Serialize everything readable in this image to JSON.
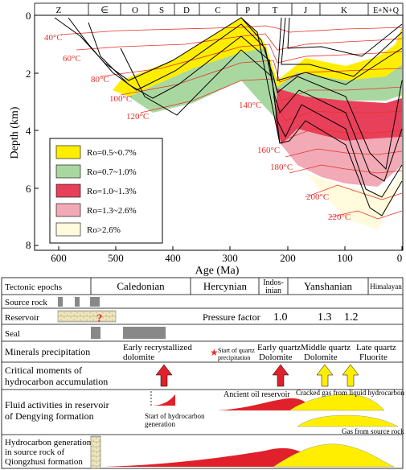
{
  "burial": {
    "periods": [
      "Z",
      "∈",
      "O",
      "S",
      "D",
      "C",
      "P",
      "T",
      "J",
      "K",
      "E+N+Q"
    ],
    "y_axis_label": "Depth (km)",
    "x_axis_label": "Age (Ma)",
    "depth_ticks": [
      "0",
      "2",
      "4",
      "6",
      "8"
    ],
    "age_ticks": [
      "600",
      "500",
      "400",
      "300",
      "200",
      "100",
      "0"
    ],
    "isotherms": [
      "40°C",
      "60°C",
      "80°C",
      "100°C",
      "120°C",
      "140°C",
      "160°C",
      "180°C",
      "200°C",
      "220°C"
    ],
    "legend": [
      {
        "label": "Ro=0.5~0.7%",
        "color": "#ffee00"
      },
      {
        "label": "Ro=0.7~1.0%",
        "color": "#a8d8a0"
      },
      {
        "label": "Ro=1.0~1.3%",
        "color": "#e8405a"
      },
      {
        "label": "Ro=1.3~2.6%",
        "color": "#f2aab6"
      },
      {
        "label": "Ro>2.6%",
        "color": "#fffbdc"
      }
    ]
  },
  "timeline": {
    "tectonic_label": "Tectonic epochs",
    "epochs": [
      "Caledonian",
      "Hercynian",
      "Indos-",
      "inian",
      "Yanshanian",
      "Himalayan"
    ],
    "source_rock": "Source rock",
    "reservoir": "Reservoir",
    "question_mark": "?",
    "pressure_factor": "Pressure factor",
    "pressure_values": [
      "1.0",
      "1.3",
      "1.2"
    ],
    "seal": "Seal",
    "minerals_label": "Minerals precipitation",
    "minerals": {
      "early_dolomite_1": "Early recrystallized",
      "early_dolomite_2": "dolomite",
      "quartz_start_1": "Start of quartz",
      "quartz_start_2": "precipitation",
      "eq_1": "Early quartz",
      "eq_2": "Dolomite",
      "mq_1": "Middle quartz",
      "mq_2": "Dolomite",
      "lq_1": "Late quartz",
      "lq_2": "Fluorite"
    },
    "critical_1": "Critical moments of",
    "critical_2": "hydrocarbon accumulation",
    "fluid_1": "Fluid activities in reservoir",
    "fluid_2": "of Dengying formation",
    "start_gen_1": "Start of hydrocarbon",
    "start_gen_2": "generation",
    "ancient_oil": "Ancient oil reservoir",
    "cracked_gas": "Cracked gas from liquid hydrocarbon",
    "gas_source": "Gas from source rock",
    "hc_gen_1": "Hydrocarbon generation",
    "hc_gen_2": "in source rock of",
    "hc_gen_3": "Qiongzhusi formation"
  }
}
